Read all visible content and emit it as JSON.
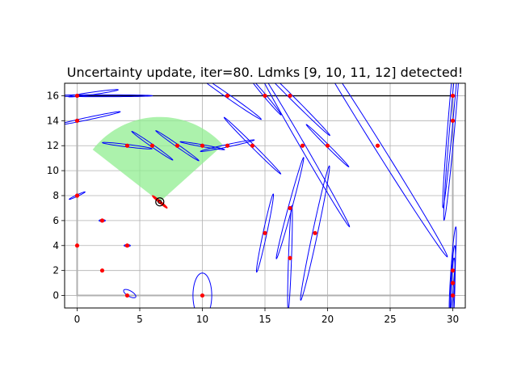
{
  "chart_data": {
    "type": "scatter",
    "title": "Uncertainty update, iter=80. Ldmks [9, 10, 11, 12] detected!",
    "xlabel": "",
    "ylabel": "",
    "xlim": [
      -1,
      31
    ],
    "ylim": [
      -1,
      17
    ],
    "xticks": [
      0,
      5,
      10,
      15,
      20,
      25,
      30
    ],
    "yticks": [
      0,
      2,
      4,
      6,
      8,
      10,
      12,
      14,
      16
    ],
    "xtick_labels": [
      "0",
      "5",
      "10",
      "15",
      "20",
      "25",
      "30"
    ],
    "ytick_labels": [
      "0",
      "2",
      "4",
      "6",
      "8",
      "10",
      "12",
      "14",
      "16"
    ],
    "grid": true,
    "colors": {
      "landmark": "#ff0000",
      "ellipse": "#0000ff",
      "fov": "#90ee90",
      "robot": "#000000",
      "track": "#b0b0b0",
      "robot_ellipse": "#ff0000"
    },
    "robot": {
      "x": 6.6,
      "y": 7.5,
      "heading_deg": 142
    },
    "robot_ellipse": {
      "cx": 6.6,
      "cy": 7.5,
      "a": 0.75,
      "b": 0.07,
      "angle": -40
    },
    "fov": {
      "cx": 6.6,
      "cy": 7.5,
      "radius": 6.8,
      "start_deg": 42,
      "end_deg": 142
    },
    "track": [
      [
        0,
        16
      ],
      [
        30,
        16
      ],
      [
        30,
        0
      ],
      [
        0,
        0
      ],
      [
        0,
        16
      ]
    ],
    "track_partial": [
      [
        0,
        16
      ],
      [
        30,
        16
      ]
    ],
    "landmarks": [
      {
        "x": 0,
        "y": 16
      },
      {
        "x": 0,
        "y": 14
      },
      {
        "x": 0,
        "y": 8
      },
      {
        "x": 0,
        "y": 4
      },
      {
        "x": 2,
        "y": 6
      },
      {
        "x": 2,
        "y": 2
      },
      {
        "x": 4,
        "y": 4
      },
      {
        "x": 4,
        "y": 12
      },
      {
        "x": 4,
        "y": 0
      },
      {
        "x": 6,
        "y": 12
      },
      {
        "x": 8,
        "y": 12
      },
      {
        "x": 10,
        "y": 12
      },
      {
        "x": 10,
        "y": 0
      },
      {
        "x": 12,
        "y": 16
      },
      {
        "x": 12,
        "y": 12
      },
      {
        "x": 14,
        "y": 12
      },
      {
        "x": 15,
        "y": 16
      },
      {
        "x": 15,
        "y": 5
      },
      {
        "x": 17,
        "y": 16
      },
      {
        "x": 17,
        "y": 7
      },
      {
        "x": 17,
        "y": 3
      },
      {
        "x": 18,
        "y": 12
      },
      {
        "x": 19,
        "y": 5
      },
      {
        "x": 20,
        "y": 12
      },
      {
        "x": 24,
        "y": 12
      },
      {
        "x": 30,
        "y": 16
      },
      {
        "x": 30,
        "y": 14
      },
      {
        "x": 30,
        "y": 2
      },
      {
        "x": 30,
        "y": 1
      },
      {
        "x": 30,
        "y": 0
      }
    ],
    "ellipses": [
      {
        "cx": 2.0,
        "cy": 16.0,
        "a": 4.0,
        "b": 0.08,
        "angle": 0
      },
      {
        "cx": 1.3,
        "cy": 16.2,
        "a": 2.0,
        "b": 0.1,
        "angle": 8
      },
      {
        "cx": 1.0,
        "cy": 14.2,
        "a": 2.5,
        "b": 0.1,
        "angle": 12
      },
      {
        "cx": 0.0,
        "cy": 8.0,
        "a": 0.7,
        "b": 0.06,
        "angle": 25
      },
      {
        "cx": 0.0,
        "cy": 4.0,
        "a": 0.1,
        "b": 0.06,
        "angle": 0
      },
      {
        "cx": 2.0,
        "cy": 6.0,
        "a": 0.25,
        "b": 0.08,
        "angle": 0
      },
      {
        "cx": 4.0,
        "cy": 4.0,
        "a": 0.25,
        "b": 0.08,
        "angle": 0
      },
      {
        "cx": 4.2,
        "cy": 0.15,
        "a": 0.55,
        "b": 0.22,
        "angle": -30
      },
      {
        "cx": 4.0,
        "cy": 12.0,
        "a": 2.0,
        "b": 0.1,
        "angle": -7
      },
      {
        "cx": 6.0,
        "cy": 12.0,
        "a": 2.0,
        "b": 0.1,
        "angle": -35
      },
      {
        "cx": 8.0,
        "cy": 12.0,
        "a": 2.1,
        "b": 0.1,
        "angle": -35
      },
      {
        "cx": 10.0,
        "cy": 12.0,
        "a": 1.8,
        "b": 0.08,
        "angle": -10
      },
      {
        "cx": 10.0,
        "cy": 0.0,
        "a": 1.8,
        "b": 0.75,
        "angle": 90
      },
      {
        "cx": 12.0,
        "cy": 16.0,
        "a": 3.3,
        "b": 0.15,
        "angle": -35
      },
      {
        "cx": 12.0,
        "cy": 12.0,
        "a": 2.2,
        "b": 0.1,
        "angle": 12
      },
      {
        "cx": 14.0,
        "cy": 12.0,
        "a": 3.2,
        "b": 0.12,
        "angle": -45
      },
      {
        "cx": 15.0,
        "cy": 16.0,
        "a": 2.0,
        "b": 0.1,
        "angle": -50
      },
      {
        "cx": 15.0,
        "cy": 5.0,
        "a": 3.2,
        "b": 0.15,
        "angle": 78
      },
      {
        "cx": 17.0,
        "cy": 16.0,
        "a": 4.5,
        "b": 0.15,
        "angle": -45
      },
      {
        "cx": 17.0,
        "cy": 7.0,
        "a": 4.2,
        "b": 0.15,
        "angle": 75
      },
      {
        "cx": 17.0,
        "cy": 3.0,
        "a": 4.2,
        "b": 0.12,
        "angle": 88
      },
      {
        "cx": 18.0,
        "cy": 12.0,
        "a": 7.5,
        "b": 0.2,
        "angle": -60
      },
      {
        "cx": 19.0,
        "cy": 5.0,
        "a": 5.5,
        "b": 0.2,
        "angle": 78
      },
      {
        "cx": 20.0,
        "cy": 12.0,
        "a": 2.4,
        "b": 0.1,
        "angle": -45
      },
      {
        "cx": 24.0,
        "cy": 12.0,
        "a": 10.5,
        "b": 0.3,
        "angle": -58
      },
      {
        "cx": 30.0,
        "cy": 16.0,
        "a": 9.0,
        "b": 0.2,
        "angle": 85
      },
      {
        "cx": 30.0,
        "cy": 14.0,
        "a": 8.0,
        "b": 0.2,
        "angle": 85
      },
      {
        "cx": 30.0,
        "cy": 2.0,
        "a": 3.5,
        "b": 0.15,
        "angle": 86
      },
      {
        "cx": 30.0,
        "cy": 1.0,
        "a": 3.0,
        "b": 0.15,
        "angle": 87
      },
      {
        "cx": 30.0,
        "cy": 0.0,
        "a": 3.0,
        "b": 0.15,
        "angle": 88
      }
    ]
  }
}
